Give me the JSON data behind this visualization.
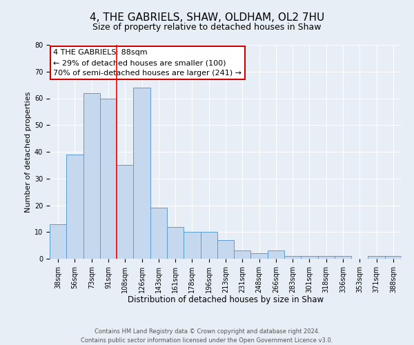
{
  "title": "4, THE GABRIELS, SHAW, OLDHAM, OL2 7HU",
  "subtitle": "Size of property relative to detached houses in Shaw",
  "xlabel": "Distribution of detached houses by size in Shaw",
  "ylabel": "Number of detached properties",
  "categories": [
    "38sqm",
    "56sqm",
    "73sqm",
    "91sqm",
    "108sqm",
    "126sqm",
    "143sqm",
    "161sqm",
    "178sqm",
    "196sqm",
    "213sqm",
    "231sqm",
    "248sqm",
    "266sqm",
    "283sqm",
    "301sqm",
    "318sqm",
    "336sqm",
    "353sqm",
    "371sqm",
    "388sqm"
  ],
  "values": [
    13,
    39,
    62,
    60,
    35,
    64,
    19,
    12,
    10,
    10,
    7,
    3,
    2,
    3,
    1,
    1,
    1,
    1,
    0,
    1,
    1
  ],
  "bar_color": "#c5d8ed",
  "bar_edge_color": "#5b9bd5",
  "red_line_index": 3,
  "annotation_line1": "4 THE GABRIELS: 88sqm",
  "annotation_line2": "← 29% of detached houses are smaller (100)",
  "annotation_line3": "70% of semi-detached houses are larger (241) →",
  "annotation_box_facecolor": "#ffffff",
  "annotation_box_edgecolor": "#cc0000",
  "ylim": [
    0,
    80
  ],
  "yticks": [
    0,
    10,
    20,
    30,
    40,
    50,
    60,
    70,
    80
  ],
  "footer_line1": "Contains HM Land Registry data © Crown copyright and database right 2024.",
  "footer_line2": "Contains public sector information licensed under the Open Government Licence v3.0.",
  "background_color": "#e8eef6",
  "plot_bg_color": "#e8eef6",
  "title_fontsize": 11,
  "subtitle_fontsize": 9,
  "xlabel_fontsize": 8.5,
  "ylabel_fontsize": 8,
  "tick_fontsize": 7,
  "footer_fontsize": 6,
  "annotation_fontsize": 8
}
